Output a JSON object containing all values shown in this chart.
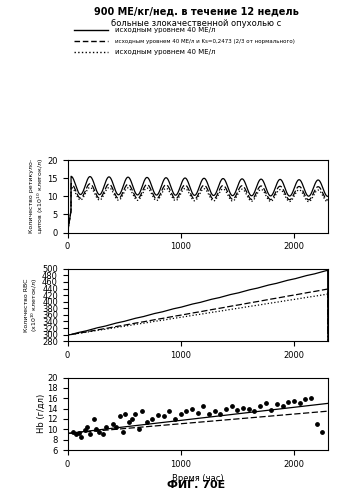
{
  "title_main": "900 МЕ/кг/нед. в течение 12 недель",
  "subtitle": "больные злокачественной опухолью с",
  "legend_solid": "исходным уровнем 40 МЕ/л",
  "legend_dashed": "исходным уровнем 40 МЕ/л и Ks=0,2473 (2/3 от нормального)",
  "legend_dotted": "исходным уровнем 40 МЕ/л",
  "xlabel": "Время (час)",
  "ylabel1": "Количество ретикулоцитов (x10¹⁰ клеток/л)",
  "ylabel2": "Количество RBC (x10¹⁰ клеток/л)",
  "ylabel3": "Hb (г/дл)",
  "fig_label": "ФИГ. 70Е",
  "xlim": [
    0,
    2300
  ],
  "reticulocyte_ylim": [
    0,
    20
  ],
  "rbc_ylim": [
    280,
    500
  ],
  "hb_ylim": [
    6,
    20
  ],
  "hb_yticks": [
    6,
    8,
    10,
    12,
    14,
    16,
    18,
    20
  ],
  "reticulocyte_yticks": [
    0,
    5,
    10,
    15,
    20
  ],
  "rbc_yticks": [
    280,
    300,
    320,
    340,
    360,
    380,
    400,
    420,
    440,
    460,
    480,
    500
  ]
}
